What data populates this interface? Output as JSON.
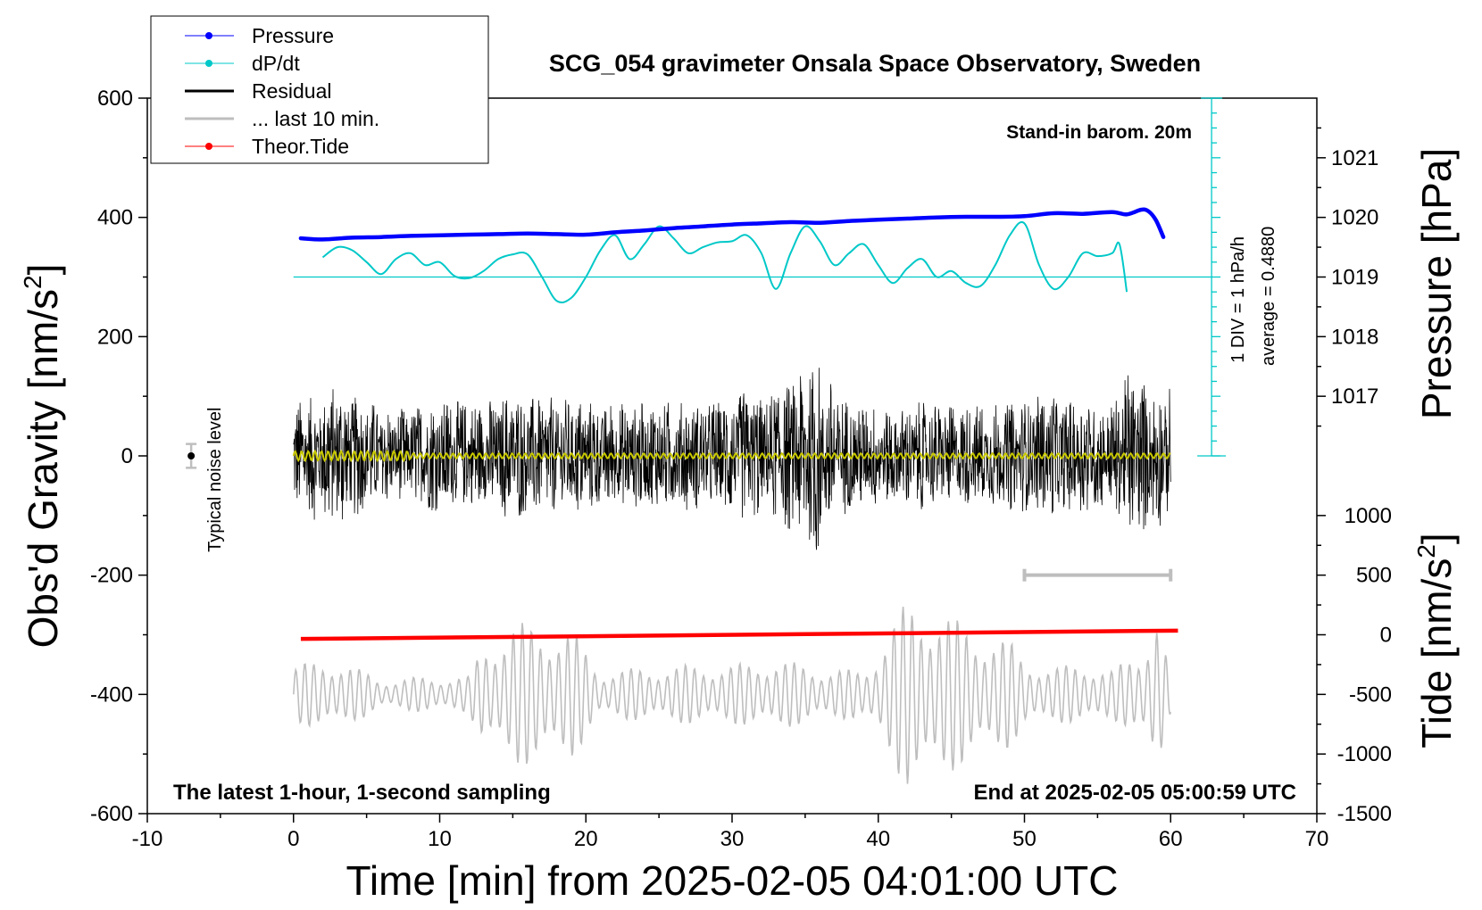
{
  "chart_data": {
    "type": "line",
    "title": "SCG_054 gravimeter Onsala Space Observatory, Sweden",
    "xlabel": "Time [min] from 2025-02-05 04:01:00 UTC",
    "ylabel_left": "Obs'd Gravity [nm/s",
    "ylabel_left_sup": "2",
    "ylabel_left_end": "]",
    "ylabel_right_top": "Pressure [hPa]",
    "ylabel_right_bottom": "Tide [nm/s",
    "ylabel_right_bottom_sup": "2",
    "ylabel_right_bottom_end": "]",
    "xlim": [
      -10,
      70
    ],
    "ylim": [
      -600,
      600
    ],
    "x_ticks": [
      -10,
      0,
      10,
      20,
      30,
      40,
      50,
      60,
      70
    ],
    "y_ticks": [
      600,
      400,
      200,
      0,
      -200,
      -400,
      -600
    ],
    "pressure_ticks": [
      1021,
      1020,
      1019,
      1018,
      1017
    ],
    "pressure_tick_base_gravity": 300,
    "pressure_gravity_per_hpa": 100,
    "tide_ticks": [
      1000,
      500,
      0,
      -500,
      -1000,
      -1500
    ],
    "tide_zero_gravity": -300,
    "tide_gravity_per_unit": 0.2,
    "dpdt_scale": {
      "label_div": "1 DIV = 1 hPa/h",
      "label_avg": "average = 0.4880",
      "axis_x": 62.8,
      "ymin": 0,
      "ymax": 600,
      "baseline": 300
    },
    "annotations": {
      "barometer": "Stand-in barom. 20m",
      "latest": "The latest 1-hour, 1-second sampling",
      "end": "End at 2025-02-05 05:00:59 UTC",
      "noise": "Typical noise level"
    },
    "noise_bar": {
      "x": -7,
      "center": 0,
      "halfwidth": 20
    },
    "last10_bar": {
      "x_start": 50,
      "x_end": 60,
      "y": -200
    },
    "legend": [
      {
        "name": "Pressure",
        "color": "#0000ff",
        "marker": true
      },
      {
        "name": "dP/dt",
        "color": "#00c8c8",
        "marker": true
      },
      {
        "name": "Residual",
        "color": "#000000",
        "marker": false
      },
      {
        "name": "... last 10 min.",
        "color": "#bebebe",
        "marker": false
      },
      {
        "name": "Theor.Tide",
        "color": "#ff0000",
        "marker": true
      }
    ],
    "series": [
      {
        "name": "Pressure",
        "color": "#0000ff",
        "x": [
          0.5,
          2,
          4,
          6,
          8,
          10,
          12,
          14,
          16,
          18,
          20,
          22,
          24,
          26,
          28,
          30,
          32,
          34,
          36,
          38,
          40,
          42,
          44,
          46,
          48,
          50,
          52,
          54,
          56,
          57,
          58,
          58.5,
          59,
          59.5
        ],
        "y": [
          365,
          363,
          366,
          367,
          369,
          370,
          371,
          372,
          373,
          372,
          371,
          375,
          378,
          382,
          385,
          388,
          390,
          392,
          391,
          394,
          396,
          398,
          400,
          401,
          401,
          402,
          407,
          406,
          409,
          405,
          413,
          410,
          395,
          367
        ]
      },
      {
        "name": "dP/dt",
        "color": "#00c8c8",
        "x": [
          2,
          3,
          4,
          5,
          6,
          7,
          8,
          9,
          10,
          11,
          12,
          13,
          14,
          15,
          16,
          17,
          18,
          19,
          20,
          21,
          22,
          23,
          24,
          25,
          26,
          27,
          28,
          29,
          30,
          31,
          32,
          33,
          34,
          35,
          36,
          37,
          38,
          39,
          40,
          41,
          42,
          43,
          44,
          45,
          46,
          47,
          48,
          49,
          50,
          51,
          52,
          53,
          54,
          55,
          56,
          56.5,
          57
        ],
        "y": [
          333,
          350,
          345,
          325,
          305,
          330,
          340,
          320,
          325,
          302,
          298,
          310,
          330,
          338,
          338,
          300,
          260,
          265,
          300,
          345,
          370,
          330,
          355,
          385,
          365,
          340,
          350,
          358,
          360,
          370,
          340,
          280,
          340,
          385,
          360,
          320,
          340,
          355,
          320,
          290,
          315,
          330,
          300,
          310,
          290,
          285,
          320,
          370,
          390,
          320,
          280,
          300,
          340,
          335,
          340,
          355,
          275
        ]
      },
      {
        "name": "Theor.Tide",
        "color": "#ff0000",
        "x": [
          0.5,
          60.5
        ],
        "y": [
          -307,
          -293
        ]
      },
      {
        "name": "Residual",
        "color": "#000000",
        "x_start": 0,
        "x_end": 60,
        "envelope_x": [
          0,
          3,
          5,
          7,
          10,
          13,
          15,
          17,
          20,
          23,
          25,
          28,
          30,
          33,
          35,
          35.5,
          36,
          38,
          40,
          43,
          45,
          48,
          50,
          52,
          54,
          56,
          57,
          59,
          60
        ],
        "envelope_amp": [
          90,
          130,
          95,
          80,
          100,
          95,
          110,
          100,
          100,
          90,
          95,
          90,
          110,
          110,
          160,
          220,
          150,
          95,
          90,
          90,
          85,
          90,
          95,
          110,
          100,
          90,
          150,
          120,
          120
        ]
      },
      {
        "name": "smoothed residual",
        "color": "#c8c800",
        "x_start": 0,
        "x_end": 60,
        "amplitude": 6
      },
      {
        "name": "... last 10 min.",
        "color": "#bebebe",
        "x_start": 0,
        "x_end": 60,
        "center": -400,
        "envelope_x": [
          0,
          3,
          6,
          9,
          12,
          13,
          15,
          17,
          19,
          21,
          24,
          27,
          30,
          33,
          36,
          39,
          40,
          42,
          43,
          45,
          47,
          49,
          50,
          52,
          54,
          56,
          58,
          59,
          60
        ],
        "envelope_amp": [
          50,
          60,
          25,
          30,
          30,
          90,
          120,
          120,
          110,
          40,
          45,
          50,
          50,
          60,
          45,
          40,
          80,
          160,
          160,
          130,
          110,
          90,
          60,
          45,
          55,
          40,
          80,
          150,
          30
        ]
      }
    ]
  }
}
